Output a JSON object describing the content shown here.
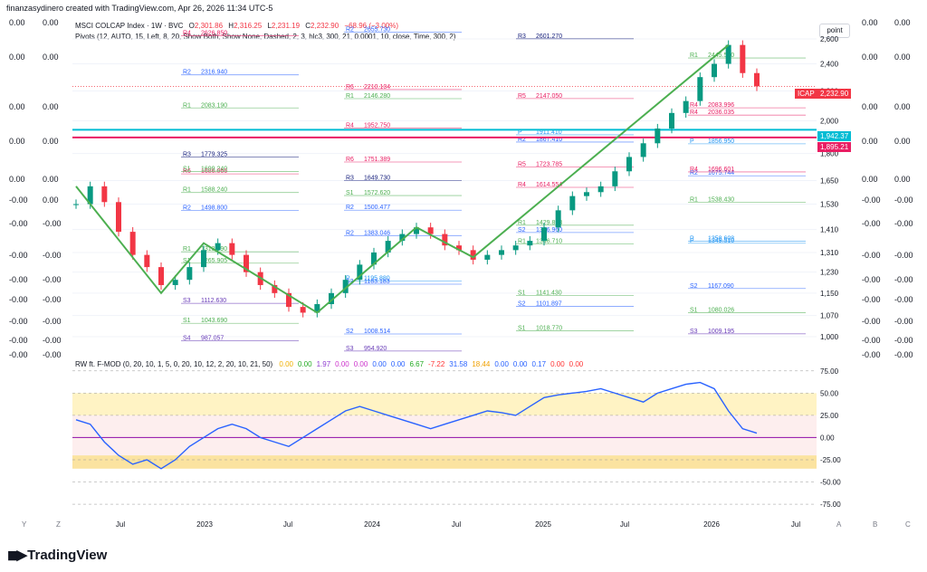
{
  "header": {
    "creator": "finanzasydinero created with TradingView.com, Apr 26, 2026 11:34 UTC-5",
    "point_button": "point"
  },
  "left_axis": {
    "col1": [
      "0.00",
      "0.00",
      "0.00",
      "0.00",
      "0.00",
      "-0.00",
      "-0.00",
      "-0.00",
      "-0.00",
      "-0.00",
      "-0.00",
      "-0.00",
      "-0.00"
    ],
    "col2": [
      "0.00",
      "0.00",
      "0.00",
      "0.00",
      "0.00",
      "0.00",
      "-0.00",
      "-0.00",
      "-0.00",
      "-0.00",
      "-0.00",
      "-0.00",
      "-0.00"
    ]
  },
  "right_axis": {
    "col1": [
      "0.00",
      "0.00",
      "0.00",
      "0.00",
      "0.00",
      "-0.00",
      "-0.00",
      "-0.00",
      "-0.00",
      "-0.00",
      "-0.00",
      "-0.00",
      "-0.00"
    ],
    "col2": [
      "0.00",
      "0.00",
      "0.00",
      "0.00",
      "0.00",
      "-0.00",
      "-0.00",
      "-0.00",
      "-0.00",
      "-0.00",
      "-0.00",
      "-0.00",
      "-0.00"
    ]
  },
  "legend": {
    "symbol_line": "MSCI COLCAP Index · 1W · BVC",
    "o_label": "O",
    "o_value": "2,301.86",
    "h_label": "H",
    "h_value": "2,316.25",
    "l_label": "L",
    "l_value": "2,231.19",
    "c_label": "C",
    "c_value": "2,232.90",
    "change": "−68.96 (−3.00%)",
    "pivots": "Pivots (12, AUTO, 15, Left, 8, 20, Show Both, Show None, Dashed, 2, 3, hlc3, 300, 21, 0.0001, 10, close, Time, 300, 2)",
    "indicator_name": "RW ft. F-MOD (0, 20, 10, 1, 5, 0, 20, 10, 12, 2, 20, 10, 21, 50)",
    "indicator_values": [
      {
        "v": "0.00",
        "color": "#f0b000"
      },
      {
        "v": "0.00",
        "color": "#22aa22"
      },
      {
        "v": "1.97",
        "color": "#8e3bd0"
      },
      {
        "v": "0.00",
        "color": "#cc33cc"
      },
      {
        "v": "0.00",
        "color": "#cc33cc"
      },
      {
        "v": "0.00",
        "color": "#2962ff"
      },
      {
        "v": "0.00",
        "color": "#2962ff"
      },
      {
        "v": "6.67",
        "color": "#22aa22"
      },
      {
        "v": "-7.22",
        "color": "#ff3333"
      },
      {
        "v": "31.58",
        "color": "#2962ff"
      },
      {
        "v": "18.44",
        "color": "#f0a000"
      },
      {
        "v": "0.00",
        "color": "#2962ff"
      },
      {
        "v": "0.00",
        "color": "#2962ff"
      },
      {
        "v": "0.17",
        "color": "#2962ff"
      },
      {
        "v": "0.00",
        "color": "#ff3333"
      },
      {
        "v": "0.00",
        "color": "#ff3333"
      }
    ]
  },
  "price_boxes": {
    "icap_label": "ICAP",
    "icap_value": "2,232.90",
    "line1_value": "1,942.37",
    "line2_value": "1,895.21"
  },
  "pivot_labels": [
    {
      "tag": "R4",
      "val": "2626.850"
    },
    {
      "tag": "R6",
      "val": "2210.104"
    },
    {
      "tag": "R5",
      "val": "2147.050"
    },
    {
      "tag": "R4",
      "val": "2083.996"
    },
    {
      "tag": "R1",
      "val": "2083.190"
    },
    {
      "tag": "R4",
      "val": "1952.750"
    },
    {
      "tag": "R2",
      "val": "1867.410"
    },
    {
      "tag": "R2",
      "val": "1675.744"
    },
    {
      "tag": "R6",
      "val": "1686.066"
    },
    {
      "tag": "R3",
      "val": "1649.730"
    },
    {
      "tag": "R4",
      "val": "1614.554"
    },
    {
      "tag": "R1",
      "val": "1538.430"
    },
    {
      "tag": "R2",
      "val": "1498.800"
    },
    {
      "tag": "R2",
      "val": "1383.046"
    },
    {
      "tag": "R1",
      "val": "1346.710"
    },
    {
      "tag": "P",
      "val": "1349.510"
    },
    {
      "tag": "R1",
      "val": "1313.090"
    },
    {
      "tag": "P",
      "val": "1195.880"
    },
    {
      "tag": "S1",
      "val": "1141.430"
    },
    {
      "tag": "S1",
      "val": "1080.026"
    },
    {
      "tag": "S1",
      "val": "1043.690"
    },
    {
      "tag": "S2",
      "val": "1008.514"
    },
    {
      "tag": "S1",
      "val": "1018.770"
    },
    {
      "tag": "R4",
      "val": "2036.035"
    },
    {
      "tag": "R3",
      "val": "1779.325"
    },
    {
      "tag": "R6",
      "val": "1751.389"
    },
    {
      "tag": "R5",
      "val": "1723.785"
    },
    {
      "tag": "R4",
      "val": "1696.601"
    },
    {
      "tag": "R1",
      "val": "1588.240"
    },
    {
      "tag": "R2",
      "val": "1500.477"
    },
    {
      "tag": "R1",
      "val": "1429.893"
    },
    {
      "tag": "P",
      "val": "1358.608"
    },
    {
      "tag": "S1",
      "val": "1265.905"
    },
    {
      "tag": "S2",
      "val": "1183.183"
    },
    {
      "tag": "S2",
      "val": "1101.897"
    },
    {
      "tag": "S3",
      "val": "1009.195"
    },
    {
      "tag": "S4",
      "val": "987.057"
    },
    {
      "tag": "R2",
      "val": "2655.730"
    },
    {
      "tag": "R3",
      "val": "2601.270"
    },
    {
      "tag": "R1",
      "val": "2445.560"
    },
    {
      "tag": "R2",
      "val": "2316.940"
    },
    {
      "tag": "R1",
      "val": "2146.280"
    },
    {
      "tag": "P",
      "val": "1911.410"
    },
    {
      "tag": "P",
      "val": "1856.950"
    },
    {
      "tag": "S1",
      "val": "1699.240"
    },
    {
      "tag": "S1",
      "val": "1572.620"
    },
    {
      "tag": "S2",
      "val": "1396.960"
    },
    {
      "tag": "S2",
      "val": "1167.090"
    },
    {
      "tag": "S3",
      "val": "1112.630"
    },
    {
      "tag": "S3",
      "val": "954.920"
    }
  ],
  "bottom_axis": {
    "left_letters": [
      "Y",
      "Z"
    ],
    "right_letters": [
      "A",
      "B",
      "C"
    ]
  },
  "brand": "TradingView",
  "chart_data": [
    {
      "type": "line",
      "title": "MSCI COLCAP Index · 1W · BVC",
      "xlabel": "",
      "ylabel": "",
      "x_ticks": [
        "Jul",
        "2023",
        "Jul",
        "2024",
        "Jul",
        "2025",
        "Jul",
        "2026",
        "Jul"
      ],
      "y_ticks": [
        1000,
        1070,
        1150,
        1230,
        1310,
        1410,
        1530,
        1650,
        1800,
        2000,
        2200,
        2400,
        2600
      ],
      "ylim": [
        960,
        2700
      ],
      "log_scale": true,
      "x": [
        "2022-04",
        "2022-05",
        "2022-06",
        "2022-07",
        "2022-08",
        "2022-09",
        "2022-10",
        "2022-11",
        "2022-12",
        "2023-01",
        "2023-02",
        "2023-03",
        "2023-04",
        "2023-05",
        "2023-06",
        "2023-07",
        "2023-08",
        "2023-09",
        "2023-10",
        "2023-11",
        "2023-12",
        "2024-01",
        "2024-02",
        "2024-03",
        "2024-04",
        "2024-05",
        "2024-06",
        "2024-07",
        "2024-08",
        "2024-09",
        "2024-10",
        "2024-11",
        "2024-12",
        "2025-01",
        "2025-02",
        "2025-03",
        "2025-04",
        "2025-05",
        "2025-06",
        "2025-07",
        "2025-08",
        "2025-09",
        "2025-10",
        "2025-11",
        "2025-12",
        "2026-01",
        "2026-02",
        "2026-03",
        "2026-04"
      ],
      "values": [
        1530,
        1620,
        1540,
        1400,
        1300,
        1250,
        1180,
        1200,
        1250,
        1320,
        1350,
        1300,
        1230,
        1180,
        1150,
        1100,
        1080,
        1110,
        1150,
        1200,
        1260,
        1310,
        1360,
        1390,
        1420,
        1390,
        1340,
        1320,
        1280,
        1300,
        1320,
        1340,
        1360,
        1420,
        1500,
        1570,
        1590,
        1620,
        1700,
        1780,
        1860,
        1950,
        2050,
        2130,
        2300,
        2400,
        2550,
        2330,
        2233
      ],
      "series": [
        {
          "name": "ICAP",
          "values": [
            1530,
            1620,
            1540,
            1400,
            1300,
            1250,
            1180,
            1200,
            1250,
            1320,
            1350,
            1300,
            1230,
            1180,
            1150,
            1100,
            1080,
            1110,
            1150,
            1200,
            1260,
            1310,
            1360,
            1390,
            1420,
            1390,
            1340,
            1320,
            1280,
            1300,
            1320,
            1340,
            1360,
            1420,
            1500,
            1570,
            1590,
            1620,
            1700,
            1780,
            1860,
            1950,
            2050,
            2130,
            2300,
            2400,
            2550,
            2330,
            2233
          ]
        }
      ],
      "horizontal_lines": [
        1942.37,
        1895.21
      ],
      "last_price": 2232.9,
      "pivot_zigzag": [
        [
          "2022-04",
          1620
        ],
        [
          "2022-10",
          1150
        ],
        [
          "2023-01",
          1350
        ],
        [
          "2023-09",
          1080
        ],
        [
          "2024-04",
          1420
        ],
        [
          "2024-08",
          1290
        ],
        [
          "2026-02",
          2550
        ]
      ]
    },
    {
      "type": "line",
      "title": "RW ft. F-MOD",
      "y_ticks": [
        75,
        50,
        25,
        0,
        -25,
        -50,
        -75
      ],
      "ylim": [
        -80,
        85
      ],
      "bands": {
        "upper": [
          25,
          50
        ],
        "lower": [
          -35,
          -20
        ]
      },
      "series": [
        {
          "name": "blue",
          "values": [
            20,
            15,
            -5,
            -20,
            -30,
            -25,
            -35,
            -25,
            -10,
            0,
            10,
            15,
            10,
            0,
            -5,
            -10,
            0,
            10,
            20,
            30,
            35,
            30,
            25,
            20,
            15,
            10,
            15,
            20,
            25,
            30,
            28,
            25,
            35,
            45,
            48,
            50,
            52,
            55,
            50,
            45,
            40,
            50,
            55,
            60,
            62,
            55,
            30,
            10,
            5
          ]
        }
      ]
    }
  ]
}
